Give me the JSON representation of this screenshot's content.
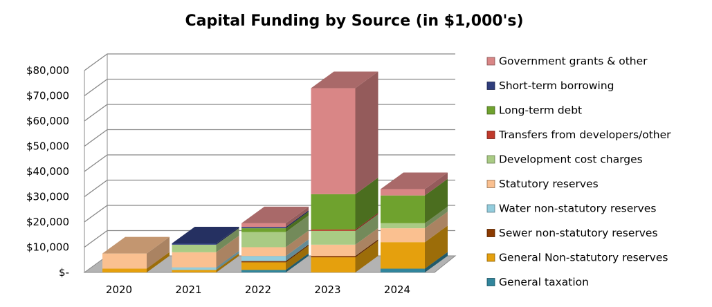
{
  "chart_data": {
    "type": "bar",
    "stacked": true,
    "three_d": true,
    "title": "Capital Funding by Source (in $1,000's)",
    "xlabel": "",
    "ylabel": "",
    "ylim": [
      0,
      80000
    ],
    "yticks": [
      0,
      10000,
      20000,
      30000,
      40000,
      50000,
      60000,
      70000,
      80000
    ],
    "ytick_labels": [
      "$-",
      "$10,000",
      "$20,000",
      "$30,000",
      "$40,000",
      "$50,000",
      "$60,000",
      "$70,000",
      "$80,000"
    ],
    "categories": [
      "2020",
      "2021",
      "2022",
      "2023",
      "2024"
    ],
    "legend_position": "right",
    "series": [
      {
        "name": "General taxation",
        "color": "#31859c",
        "values": [
          0,
          0,
          1000,
          0,
          1500
        ]
      },
      {
        "name": "General Non-statutory reserves",
        "color": "#e5a00d",
        "values": [
          1500,
          1000,
          3000,
          6000,
          10500
        ]
      },
      {
        "name": "Sewer non-statutory reserves",
        "color": "#8b3a00",
        "values": [
          0,
          0,
          500,
          500,
          0
        ]
      },
      {
        "name": "Water non-statutory reserves",
        "color": "#93cddd",
        "values": [
          0,
          1000,
          2000,
          0,
          0
        ]
      },
      {
        "name": "Statutory reserves",
        "color": "#fac090",
        "values": [
          6000,
          6000,
          3500,
          4500,
          5500
        ]
      },
      {
        "name": "Development cost charges",
        "color": "#a9cb84",
        "values": [
          0,
          3000,
          6000,
          5500,
          2000
        ]
      },
      {
        "name": "Transfers from developers/other",
        "color": "#c0392b",
        "values": [
          0,
          0,
          0,
          500,
          0
        ]
      },
      {
        "name": "Long-term debt",
        "color": "#6fa22e",
        "values": [
          0,
          0,
          1500,
          14000,
          11000
        ]
      },
      {
        "name": "Short-term borrowing",
        "color": "#2f3d7c",
        "values": [
          0,
          500,
          500,
          0,
          0
        ]
      },
      {
        "name": "Government grants & other",
        "color": "#d98686",
        "values": [
          0,
          0,
          1500,
          42000,
          2500
        ]
      }
    ]
  }
}
